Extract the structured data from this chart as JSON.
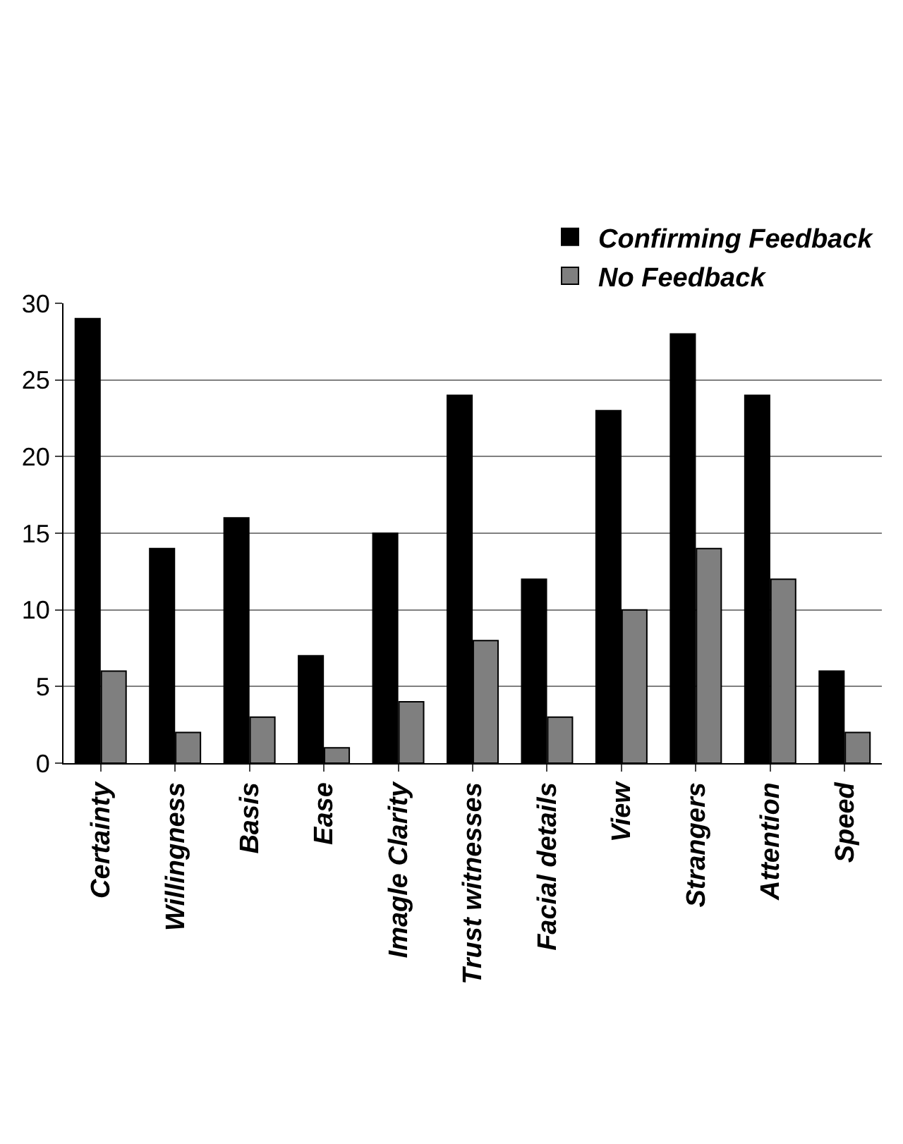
{
  "chart_data": {
    "type": "bar",
    "categories": [
      "Certainty",
      "Willingness",
      "Basis",
      "Ease",
      "Imagle Clarity",
      "Trust witnesses",
      "Facial details",
      "View",
      "Strangers",
      "Attention",
      "Speed"
    ],
    "series": [
      {
        "name": "Confirming Feedback",
        "color": "#000000",
        "values": [
          29,
          14,
          16,
          7,
          15,
          24,
          12,
          23,
          28,
          24,
          6
        ]
      },
      {
        "name": "No Feedback",
        "color": "#7f7f7f",
        "values": [
          6,
          2,
          3,
          1,
          4,
          8,
          3,
          10,
          14,
          12,
          2
        ]
      }
    ],
    "ylim": [
      0,
      30
    ],
    "yticks": [
      0,
      5,
      10,
      15,
      20,
      25,
      30
    ],
    "grid": "y",
    "legend": "top right"
  }
}
